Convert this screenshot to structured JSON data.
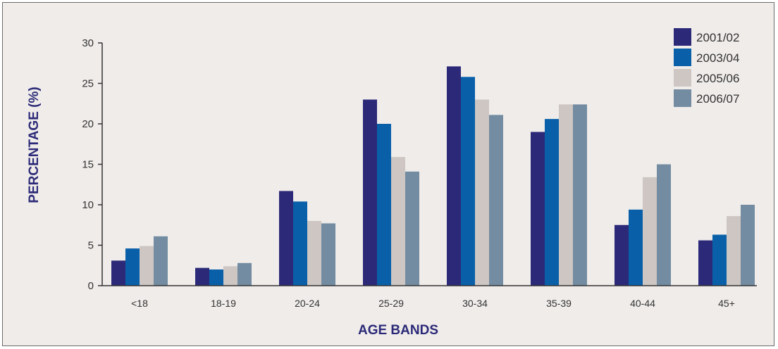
{
  "chart_data": {
    "type": "bar",
    "title": "",
    "xlabel": "AGE BANDS",
    "ylabel": "PERCENTAGE (%)",
    "ylim": [
      0,
      30
    ],
    "yticks": [
      0,
      5,
      10,
      15,
      20,
      25,
      30
    ],
    "grid": false,
    "legend_position": "top-right",
    "categories": [
      "<18",
      "18-19",
      "20-24",
      "25-29",
      "30-34",
      "35-39",
      "40-44",
      "45+"
    ],
    "series": [
      {
        "name": "2001/02",
        "color": "#2c2a78",
        "values": [
          3.1,
          2.2,
          11.7,
          23.0,
          27.1,
          19.0,
          7.5,
          5.6
        ]
      },
      {
        "name": "2003/04",
        "color": "#0960a9",
        "values": [
          4.6,
          2.0,
          10.4,
          20.0,
          25.8,
          20.6,
          9.4,
          6.3
        ]
      },
      {
        "name": "2005/06",
        "color": "#cdc6c2",
        "values": [
          4.9,
          2.4,
          8.0,
          15.9,
          23.0,
          22.4,
          13.4,
          8.6
        ]
      },
      {
        "name": "2006/07",
        "color": "#738ca1",
        "values": [
          6.1,
          2.8,
          7.7,
          14.1,
          21.1,
          22.4,
          15.0,
          10.0
        ]
      }
    ]
  }
}
